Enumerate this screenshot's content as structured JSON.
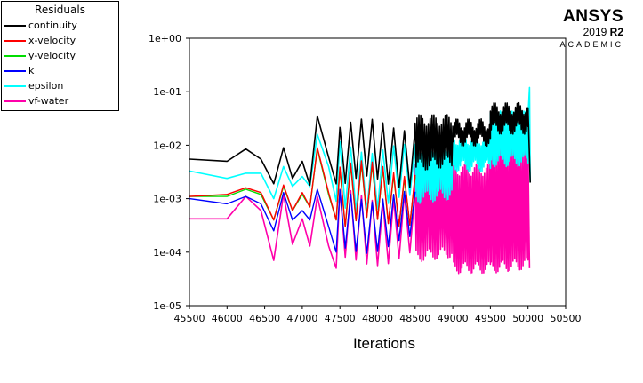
{
  "brand": {
    "name": "ANSYS",
    "version_year": "2019",
    "version_release": "R2",
    "edition": "ACADEMIC"
  },
  "chart_data": {
    "type": "line",
    "title": "",
    "xlabel": "Iterations",
    "ylabel": "",
    "xlim": [
      45500,
      50500
    ],
    "ylim": [
      1e-05,
      1
    ],
    "yscale": "log",
    "grid": false,
    "legend_title": "Residuals",
    "legend_position": "top-left",
    "x_ticks": [
      "45500",
      "46000",
      "46500",
      "47000",
      "47500",
      "48000",
      "48500",
      "49000",
      "49500",
      "50000",
      "50500"
    ],
    "y_ticks": [
      "1e-05",
      "1e-04",
      "1e-03",
      "1e-02",
      "1e-01",
      "1e+00"
    ],
    "series": [
      {
        "name": "vf-water",
        "color": "#ff00aa",
        "points": [
          [
            45500,
            0.00042
          ],
          [
            46000,
            0.00042
          ],
          [
            46250,
            0.0011
          ],
          [
            46450,
            0.0006
          ],
          [
            46620,
            7e-05
          ],
          [
            46750,
            0.0012
          ],
          [
            46870,
            0.00014
          ],
          [
            47000,
            0.00042
          ],
          [
            47100,
            0.00013
          ],
          [
            47200,
            0.0011
          ],
          [
            47350,
            0.00013
          ],
          [
            47450,
            5e-05
          ]
        ],
        "osc": [
          {
            "x0": 47500,
            "x1": 48500,
            "n": 14,
            "hi": [
              0.0012,
              0.0011
            ],
            "lo": [
              6e-05,
              8e-05
            ]
          },
          {
            "x0": 48500,
            "x1": 49000,
            "n": 40,
            "hi": [
              0.0035,
              0.0035
            ],
            "lo": [
              8e-05,
              0.0001
            ]
          },
          {
            "x0": 49000,
            "x1": 49500,
            "n": 45,
            "hi": [
              0.0035,
              0.0035
            ],
            "lo": [
              5e-05,
              5e-05
            ]
          },
          {
            "x0": 49500,
            "x1": 50000,
            "n": 45,
            "hi": [
              0.009,
              0.009
            ],
            "lo": [
              5e-05,
              6e-05
            ]
          }
        ],
        "tail": [
          [
            50000,
            0.009
          ],
          [
            50020,
            5e-05
          ]
        ]
      },
      {
        "name": "epsilon",
        "color": "#00ffff",
        "points": [
          [
            45500,
            0.0033
          ],
          [
            46000,
            0.0024
          ],
          [
            46250,
            0.003
          ],
          [
            46450,
            0.003
          ],
          [
            46620,
            0.001
          ],
          [
            46750,
            0.004
          ],
          [
            46870,
            0.0017
          ],
          [
            47000,
            0.0026
          ],
          [
            47100,
            0.0017
          ],
          [
            47200,
            0.016
          ],
          [
            47350,
            0.004
          ],
          [
            47450,
            0.0009
          ]
        ],
        "osc": [
          {
            "x0": 47500,
            "x1": 48500,
            "n": 14,
            "hi": [
              0.01,
              0.008
            ],
            "lo": [
              0.0006,
              0.0009
            ]
          },
          {
            "x0": 48500,
            "x1": 49000,
            "n": 40,
            "hi": [
              0.009,
              0.01
            ],
            "lo": [
              0.001,
              0.0012
            ]
          },
          {
            "x0": 49000,
            "x1": 49500,
            "n": 45,
            "hi": [
              0.013,
              0.013
            ],
            "lo": [
              0.004,
              0.004
            ]
          },
          {
            "x0": 49500,
            "x1": 50000,
            "n": 45,
            "hi": [
              0.035,
              0.035
            ],
            "lo": [
              0.005,
              0.005
            ]
          }
        ],
        "tail": [
          [
            50000,
            0.035
          ],
          [
            50020,
            0.12
          ],
          [
            50030,
            0.002
          ]
        ]
      },
      {
        "name": "y-velocity",
        "color": "#00dd00",
        "points": [
          [
            45500,
            0.0011
          ],
          [
            46000,
            0.0011
          ],
          [
            46250,
            0.0015
          ],
          [
            46450,
            0.0012
          ],
          [
            46620,
            0.0004
          ],
          [
            46750,
            0.0017
          ],
          [
            46870,
            0.0006
          ],
          [
            47000,
            0.0012
          ],
          [
            47100,
            0.0007
          ],
          [
            47200,
            0.0085
          ],
          [
            47350,
            0.0012
          ],
          [
            47450,
            0.0004
          ]
        ],
        "osc": [
          {
            "x0": 47500,
            "x1": 48500,
            "n": 14,
            "hi": [
              0.004,
              0.003
            ],
            "lo": [
              0.0003,
              0.0004
            ]
          }
        ],
        "tail": []
      },
      {
        "name": "x-velocity",
        "color": "#ff0000",
        "points": [
          [
            45500,
            0.0011
          ],
          [
            46000,
            0.0012
          ],
          [
            46250,
            0.0016
          ],
          [
            46450,
            0.0013
          ],
          [
            46620,
            0.0004
          ],
          [
            46750,
            0.0018
          ],
          [
            46870,
            0.0006
          ],
          [
            47000,
            0.0013
          ],
          [
            47100,
            0.0007
          ],
          [
            47200,
            0.009
          ],
          [
            47350,
            0.0013
          ],
          [
            47450,
            0.0004
          ]
        ],
        "osc": [
          {
            "x0": 47500,
            "x1": 48500,
            "n": 14,
            "hi": [
              0.0045,
              0.0033
            ],
            "lo": [
              0.0003,
              0.0004
            ]
          }
        ],
        "tail": []
      },
      {
        "name": "k",
        "color": "#0000ff",
        "points": [
          [
            45500,
            0.001
          ],
          [
            46000,
            0.0008
          ],
          [
            46250,
            0.0011
          ],
          [
            46450,
            0.0008
          ],
          [
            46620,
            0.00025
          ],
          [
            46750,
            0.0013
          ],
          [
            46870,
            0.0004
          ],
          [
            47000,
            0.0006
          ],
          [
            47100,
            0.0004
          ],
          [
            47200,
            0.0015
          ],
          [
            47350,
            0.0003
          ],
          [
            47450,
            0.0001
          ]
        ],
        "osc": [
          {
            "x0": 47500,
            "x1": 48500,
            "n": 14,
            "hi": [
              0.0012,
              0.0011
            ],
            "lo": [
              0.0001,
              0.00015
            ]
          }
        ],
        "tail": []
      },
      {
        "name": "continuity",
        "color": "#000000",
        "points": [
          [
            45500,
            0.0055
          ],
          [
            46000,
            0.005
          ],
          [
            46250,
            0.0085
          ],
          [
            46450,
            0.0055
          ],
          [
            46620,
            0.0019
          ],
          [
            46750,
            0.009
          ],
          [
            46870,
            0.0024
          ],
          [
            47000,
            0.005
          ],
          [
            47100,
            0.0018
          ],
          [
            47200,
            0.035
          ],
          [
            47350,
            0.006
          ],
          [
            47450,
            0.0019
          ]
        ],
        "osc": [
          {
            "x0": 47500,
            "x1": 48500,
            "n": 14,
            "hi": [
              0.025,
              0.025
            ],
            "lo": [
              0.002,
              0.002
            ]
          },
          {
            "x0": 48500,
            "x1": 49000,
            "n": 40,
            "hi": [
              0.03,
              0.03
            ],
            "lo": [
              0.004,
              0.005
            ]
          },
          {
            "x0": 49000,
            "x1": 49500,
            "n": 45,
            "hi": [
              0.025,
              0.025
            ],
            "lo": [
              0.012,
              0.012
            ]
          },
          {
            "x0": 49500,
            "x1": 50000,
            "n": 45,
            "hi": [
              0.05,
              0.05
            ],
            "lo": [
              0.02,
              0.02
            ]
          }
        ],
        "tail": [
          [
            50000,
            0.05
          ],
          [
            50030,
            0.002
          ]
        ]
      }
    ],
    "legend_order": [
      "continuity",
      "x-velocity",
      "y-velocity",
      "k",
      "epsilon",
      "vf-water"
    ]
  }
}
